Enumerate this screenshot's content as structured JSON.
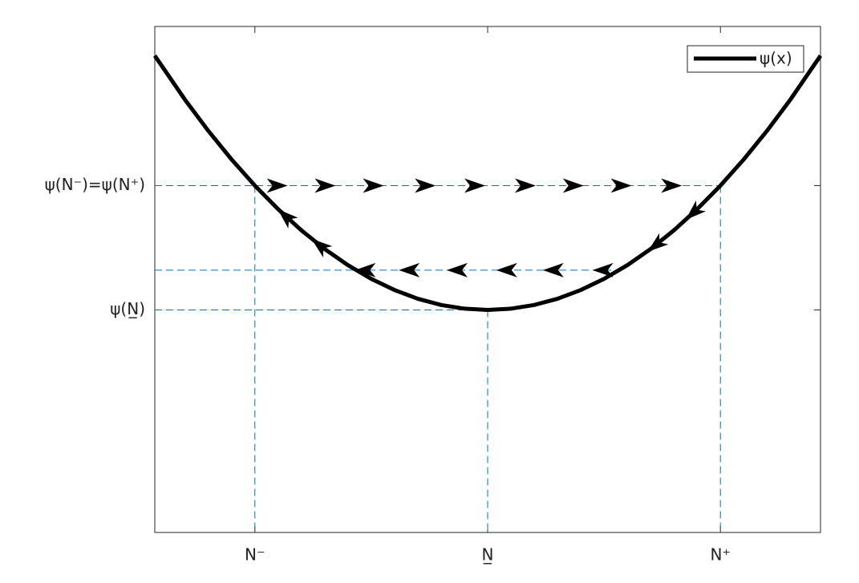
{
  "chart_data": {
    "type": "line",
    "series": [
      {
        "name": "ψ(x)",
        "color": "#000000",
        "x": [
          -1.43,
          -1.3,
          -1.2,
          -1.1,
          -1.0,
          -0.9,
          -0.8,
          -0.7,
          -0.6,
          -0.5,
          -0.4,
          -0.3,
          -0.2,
          -0.1,
          0,
          0.1,
          0.2,
          0.3,
          0.4,
          0.5,
          0.6,
          0.7,
          0.8,
          0.9,
          1.0,
          1.1,
          1.2,
          1.3,
          1.43
        ],
        "values": [
          2.045,
          1.69,
          1.44,
          1.21,
          1.0,
          0.81,
          0.64,
          0.49,
          0.36,
          0.25,
          0.16,
          0.09,
          0.04,
          0.01,
          0,
          0.01,
          0.04,
          0.09,
          0.16,
          0.25,
          0.36,
          0.49,
          0.64,
          0.81,
          1.0,
          1.21,
          1.44,
          1.69,
          2.045
        ]
      }
    ],
    "guides": [
      {
        "x": [
          -1.43,
          1.0
        ],
        "values": [
          1.0,
          1.0
        ]
      },
      {
        "x": [
          -1.43,
          0.566
        ],
        "values": [
          0.32,
          0.32
        ]
      },
      {
        "x": [
          -1.43,
          0
        ],
        "values": [
          0,
          0
        ]
      },
      {
        "x": [
          -1.0,
          -1.0
        ],
        "values": [
          1.0,
          -1.79
        ]
      },
      {
        "x": [
          0,
          0
        ],
        "values": [
          0,
          -1.79
        ]
      },
      {
        "x": [
          1.0,
          1.0
        ],
        "values": [
          1.0,
          -1.79
        ]
      }
    ],
    "guide_color": "#0072bd",
    "arrows": [
      {
        "direction": "right",
        "x": [
          -0.904,
          -0.698,
          -0.491,
          -0.268,
          -0.055,
          0.162,
          0.368,
          0.574,
          0.79
        ],
        "values": [
          1.0,
          1.0,
          1.0,
          1.0,
          1.0,
          1.0,
          1.0,
          1.0,
          1.0
        ]
      },
      {
        "direction": "left",
        "x": [
          -0.526,
          -0.337,
          -0.131,
          0.082,
          0.282,
          0.495
        ],
        "values": [
          0.32,
          0.32,
          0.32,
          0.32,
          0.32,
          0.32
        ]
      },
      {
        "direction": "left",
        "x": [
          -0.869,
          -0.722,
          0.883,
          0.722
        ],
        "values": [
          0.755,
          0.52,
          0.78,
          0.52
        ]
      }
    ],
    "xlim": [
      -1.43,
      1.43
    ],
    "ylim": [
      -1.79,
      2.28
    ],
    "xticks": [
      {
        "value": -1,
        "label": "N⁻"
      },
      {
        "value": 0,
        "label": "N̲"
      },
      {
        "value": 1,
        "label": "N⁺"
      }
    ],
    "yticks": [
      {
        "value": 0,
        "label": "ψ(N̲)"
      },
      {
        "value": 1,
        "label": "ψ(N⁻)=ψ(N⁺)"
      }
    ],
    "legend": "upper right"
  }
}
